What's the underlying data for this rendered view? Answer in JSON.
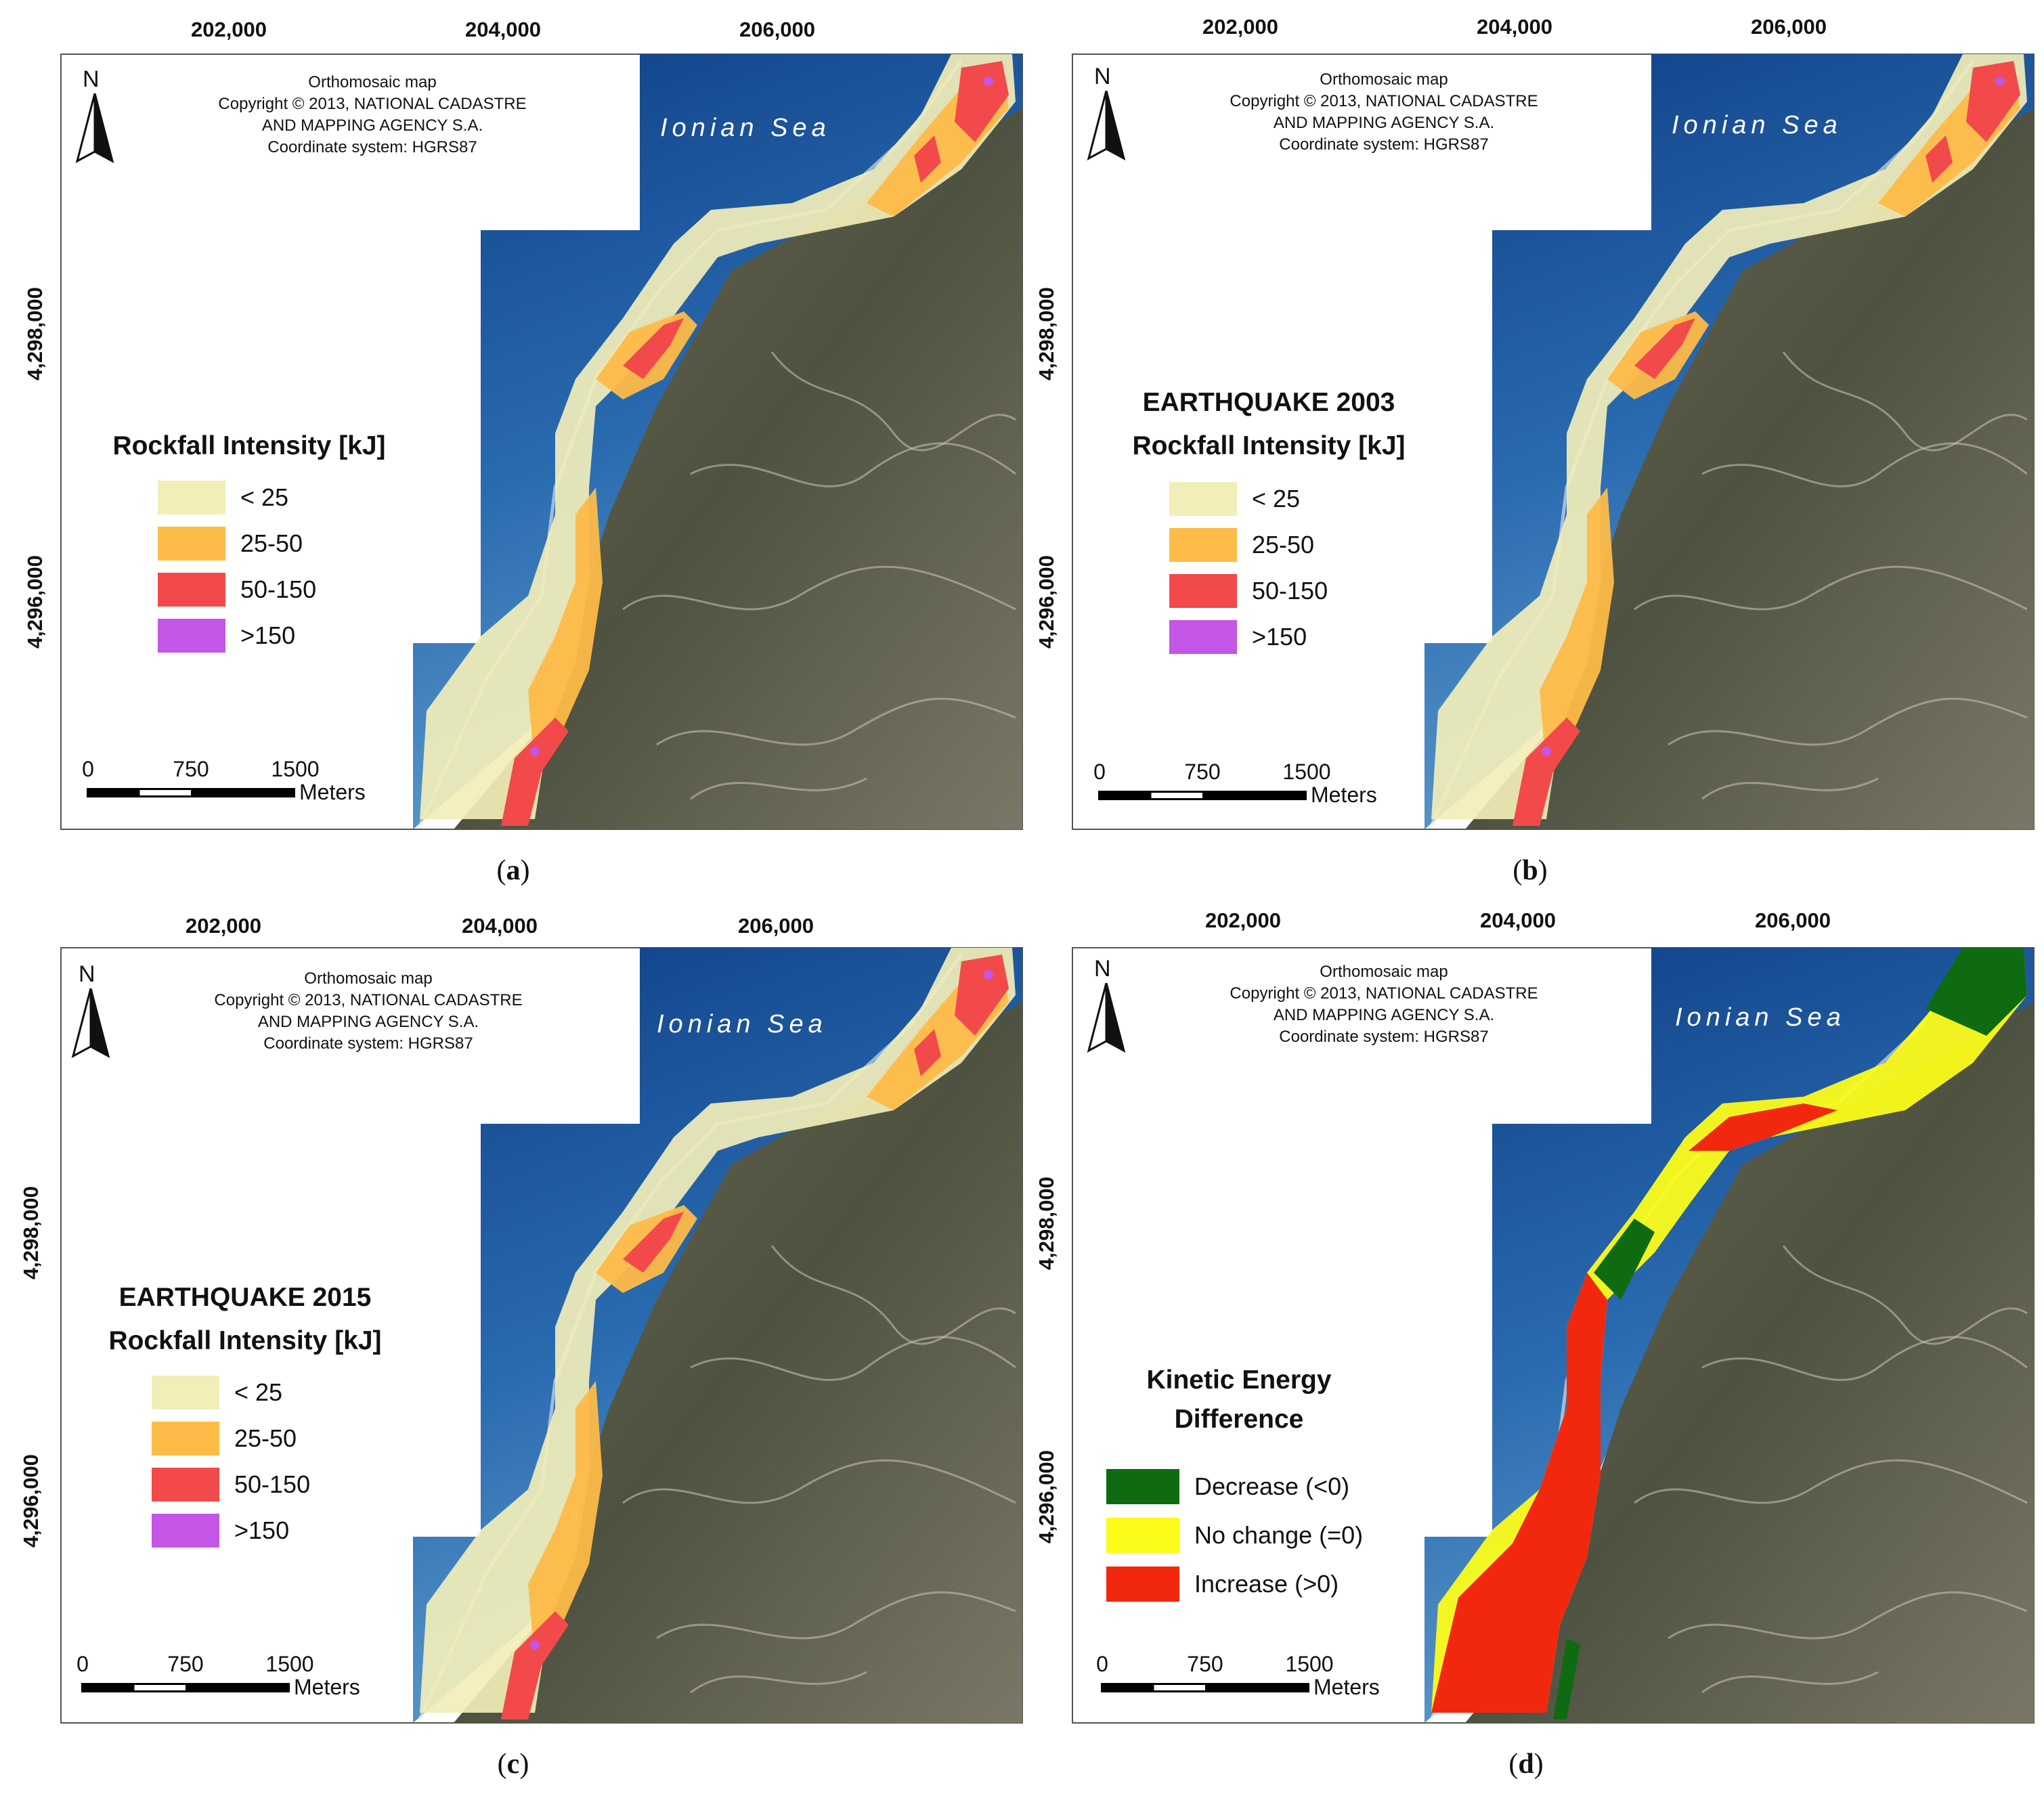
{
  "x_ticks": [
    "202,000",
    "204,000",
    "206,000"
  ],
  "y_ticks": [
    "4,298,000",
    "4,296,000"
  ],
  "credit": {
    "line1": "Orthomosaic map",
    "line2": "Copyright © 2013, NATIONAL CADASTRE",
    "line3": "AND MAPPING AGENCY S.A.",
    "line4": "Coordinate system: HGRS87"
  },
  "sea_label": "Ionian Sea",
  "north_label": "N",
  "scale": {
    "n0": "0",
    "n1": "750",
    "n2": "1500",
    "unit": "Meters"
  },
  "intensity_legend": {
    "title": "Rockfall Intensity [kJ]",
    "items": [
      {
        "label": "< 25",
        "color": "#f2eeb8"
      },
      {
        "label": "25-50",
        "color": "#fdbb48"
      },
      {
        "label": "50-150",
        "color": "#f24a4a"
      },
      {
        "label": ">150",
        "color": "#c356e6"
      }
    ]
  },
  "difference_legend": {
    "title_line1": "Kinetic Energy",
    "title_line2": "Difference",
    "items": [
      {
        "label": "Decrease (<0)",
        "color": "#0e6b12"
      },
      {
        "label": "No change (=0)",
        "color": "#fcfc1a"
      },
      {
        "label": "Increase (>0)",
        "color": "#f2280e"
      }
    ]
  },
  "panels": {
    "a": {
      "caption": "a",
      "scenario": ""
    },
    "b": {
      "caption": "b",
      "scenario": "EARTHQUAKE 2003"
    },
    "c": {
      "caption": "c",
      "scenario": "EARTHQUAKE 2015"
    },
    "d": {
      "caption": "d"
    }
  }
}
